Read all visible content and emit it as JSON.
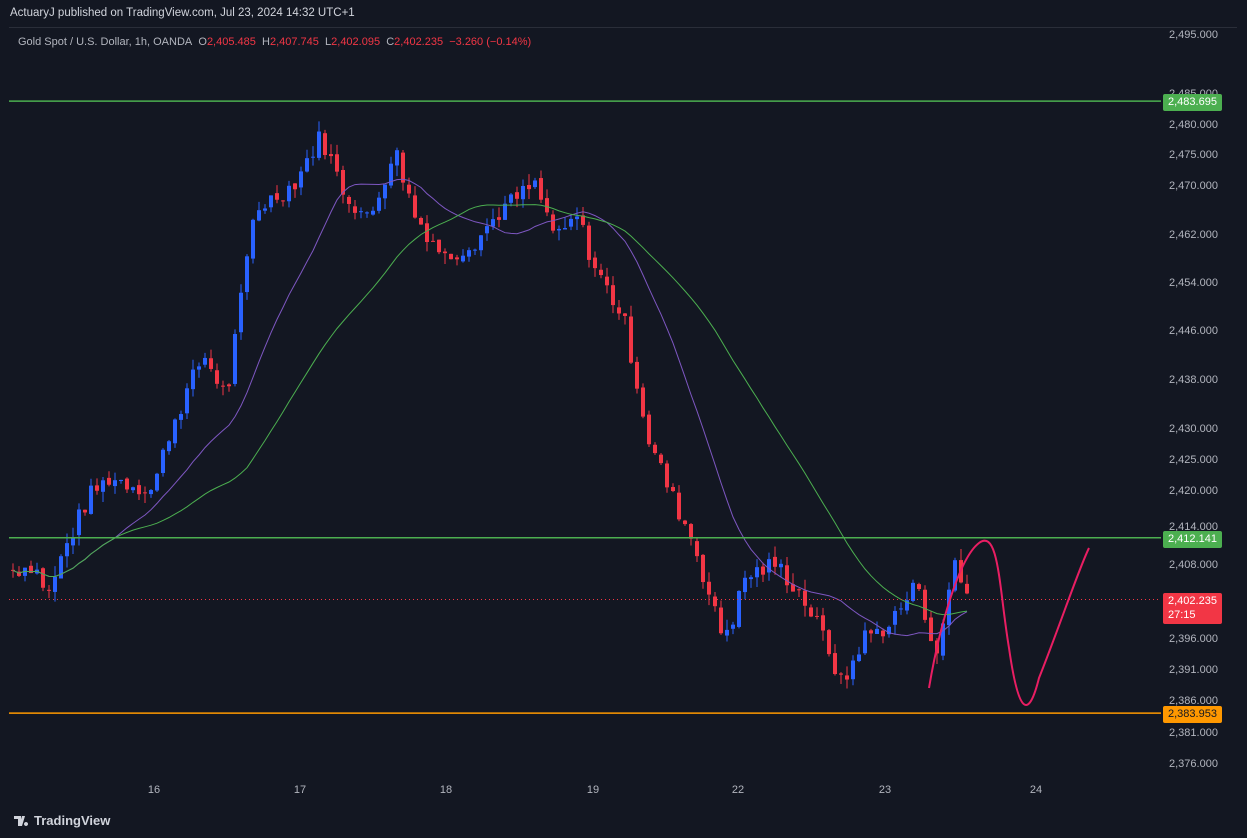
{
  "header": {
    "publisher_line": "ActuaryJ published on TradingView.com, Jul 23, 2024 14:32 UTC+1"
  },
  "legend": {
    "symbol": "Gold Spot / U.S. Dollar, 1h, OANDA",
    "o_label": "O",
    "o_value": "2,405.485",
    "h_label": "H",
    "h_value": "2,407.745",
    "l_label": "L",
    "l_value": "2,402.095",
    "c_label": "C",
    "c_value": "2,402.235",
    "change": "−3.260 (−0.14%)"
  },
  "price_scale": {
    "ticks": [
      "2,495.000",
      "2,485.000",
      "2,480.000",
      "2,475.000",
      "2,470.000",
      "2,462.000",
      "2,454.000",
      "2,446.000",
      "2,438.000",
      "2,430.000",
      "2,425.000",
      "2,420.000",
      "2,414.000",
      "2,408.000",
      "2,396.000",
      "2,391.000",
      "2,386.000",
      "2,381.000",
      "2,376.000"
    ]
  },
  "price_tags": {
    "resistance_top": {
      "label": "2,483.695",
      "color": "#4caf50"
    },
    "resistance_mid": {
      "label": "2,412.141",
      "color": "#4caf50"
    },
    "last_price": {
      "label": "2,402.235",
      "countdown": "27:15",
      "color": "#f23645"
    },
    "support": {
      "label": "2,383.953",
      "color": "#ff9800"
    }
  },
  "time_axis": {
    "labels": [
      "16",
      "17",
      "18",
      "19",
      "22",
      "23",
      "24"
    ]
  },
  "footer": {
    "brand": "TradingView"
  },
  "colors": {
    "up": "#2962ff",
    "down": "#f23645",
    "ma_fast": "#7e57c2",
    "ma_slow": "#4caf50",
    "projection": "#e91e63",
    "grid": "#1e222d",
    "text": "#b2b5be"
  }
}
